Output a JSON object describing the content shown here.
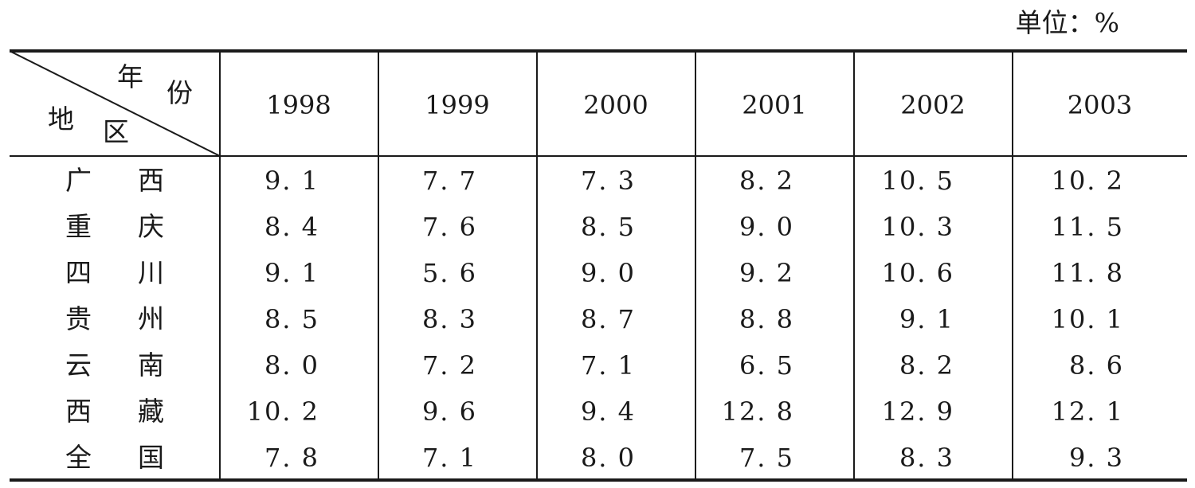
{
  "unit_label": "单位：%",
  "header": {
    "corner_year": [
      "年",
      "份"
    ],
    "corner_region": [
      "地",
      "区"
    ],
    "years": [
      "1998",
      "1999",
      "2000",
      "2001",
      "2002",
      "2003"
    ]
  },
  "rows": [
    {
      "region": "广 西",
      "values": [
        "9. 1",
        "7. 7",
        "7. 3",
        "8. 2",
        "10. 5",
        "10. 2"
      ]
    },
    {
      "region": "重 庆",
      "values": [
        "8. 4",
        "7. 6",
        "8. 5",
        "9. 0",
        "10. 3",
        "11. 5"
      ]
    },
    {
      "region": "四 川",
      "values": [
        "9. 1",
        "5. 6",
        "9. 0",
        "9. 2",
        "10. 6",
        "11. 8"
      ]
    },
    {
      "region": "贵 州",
      "values": [
        "8. 5",
        "8. 3",
        "8. 7",
        "8. 8",
        "9. 1",
        "10. 1"
      ]
    },
    {
      "region": "云 南",
      "values": [
        "8. 0",
        "7. 2",
        "7. 1",
        "6. 5",
        "8. 2",
        "8. 6"
      ]
    },
    {
      "region": "西 藏",
      "values": [
        "10. 2",
        "9. 6",
        "9. 4",
        "12. 8",
        "12. 9",
        "12. 1"
      ]
    },
    {
      "region": "全 国",
      "values": [
        "7. 8",
        "7. 1",
        "8. 0",
        "7. 5",
        "8. 3",
        "9. 3"
      ]
    }
  ]
}
